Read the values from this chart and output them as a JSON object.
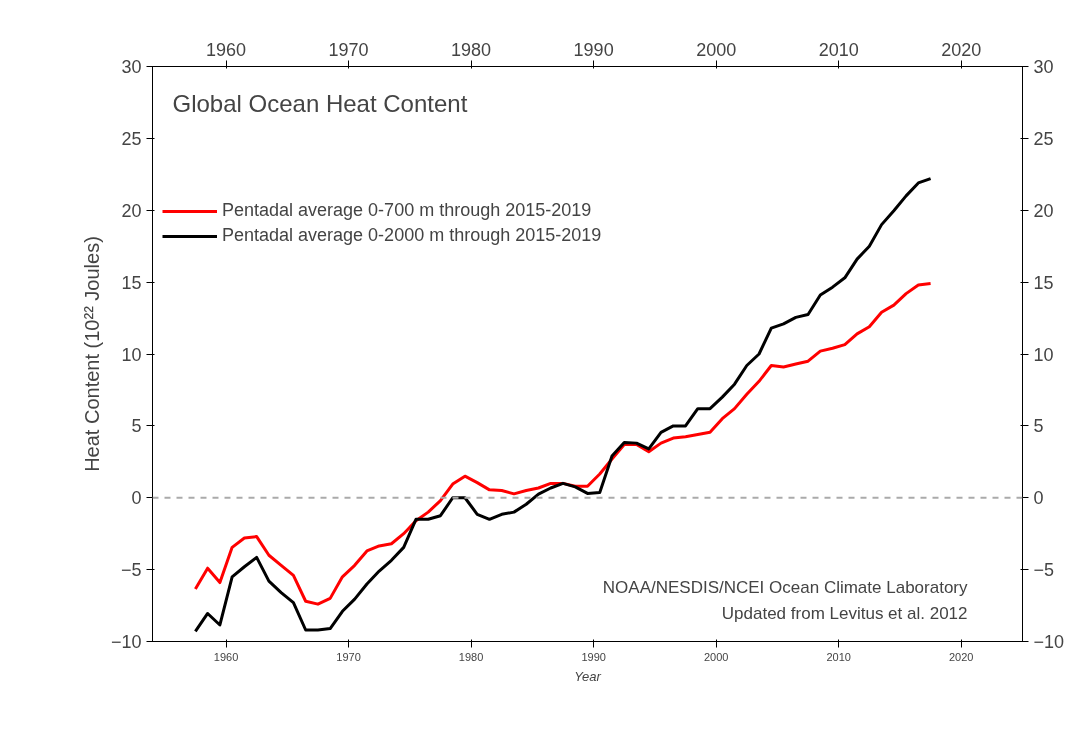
{
  "chart_data": {
    "type": "line",
    "title": "Global Ocean Heat Content",
    "xlabel": "Year",
    "ylabel": "Heat Content (10²² Joules)",
    "x": [
      1957.5,
      1958.5,
      1959.5,
      1960.5,
      1961.5,
      1962.5,
      1963.5,
      1964.5,
      1965.5,
      1966.5,
      1967.5,
      1968.5,
      1969.5,
      1970.5,
      1971.5,
      1972.5,
      1973.5,
      1974.5,
      1975.5,
      1976.5,
      1977.5,
      1978.5,
      1979.5,
      1980.5,
      1981.5,
      1982.5,
      1983.5,
      1984.5,
      1985.5,
      1986.5,
      1987.5,
      1988.5,
      1989.5,
      1990.5,
      1991.5,
      1992.5,
      1993.5,
      1994.5,
      1995.5,
      1996.5,
      1997.5,
      1998.5,
      1999.5,
      2000.5,
      2001.5,
      2002.5,
      2003.5,
      2004.5,
      2005.5,
      2006.5,
      2007.5,
      2008.5,
      2009.5,
      2010.5,
      2011.5,
      2012.5,
      2013.5,
      2014.5,
      2015.5,
      2016.5,
      2017.5
    ],
    "series": [
      {
        "name": "Pentadal average 0-700 m through 2015-2019",
        "color": "#ff0000",
        "values": [
          -6.35,
          -4.9,
          -5.9,
          -3.45,
          -2.8,
          -2.7,
          -4.0,
          -4.7,
          -5.4,
          -7.2,
          -7.4,
          -7.0,
          -5.5,
          -4.7,
          -3.7,
          -3.35,
          -3.2,
          -2.5,
          -1.6,
          -1.0,
          -0.2,
          0.95,
          1.5,
          1.05,
          0.55,
          0.5,
          0.27,
          0.5,
          0.68,
          1.0,
          1.0,
          0.8,
          0.8,
          1.65,
          2.7,
          3.7,
          3.7,
          3.2,
          3.8,
          4.15,
          4.25,
          4.4,
          4.55,
          5.5,
          6.2,
          7.2,
          8.1,
          9.2,
          9.1,
          9.3,
          9.5,
          10.2,
          10.4,
          10.65,
          11.4,
          11.9,
          12.9,
          13.4,
          14.2,
          14.8,
          14.9
        ]
      },
      {
        "name": "Pentadal average 0-2000 m through 2015-2019",
        "color": "#000000",
        "values": [
          -9.3,
          -8.05,
          -8.85,
          -5.5,
          -4.8,
          -4.15,
          -5.8,
          -6.6,
          -7.3,
          -9.2,
          -9.2,
          -9.1,
          -7.9,
          -7.05,
          -6.0,
          -5.1,
          -4.35,
          -3.45,
          -1.5,
          -1.5,
          -1.25,
          0.0,
          0.0,
          -1.15,
          -1.5,
          -1.15,
          -1.0,
          -0.45,
          0.25,
          0.68,
          1.0,
          0.76,
          0.3,
          0.37,
          2.9,
          3.85,
          3.8,
          3.4,
          4.55,
          5.0,
          5.0,
          6.2,
          6.2,
          7.0,
          7.9,
          9.2,
          10.0,
          11.8,
          12.1,
          12.55,
          12.75,
          14.1,
          14.65,
          15.3,
          16.6,
          17.5,
          19.0,
          19.97,
          21.0,
          21.9,
          22.2
        ]
      }
    ],
    "xlim": [
      1954,
      2025
    ],
    "xticks": [
      1960,
      1970,
      1980,
      1990,
      2000,
      2010,
      2020
    ],
    "x2lim": [
      1954,
      2025
    ],
    "x2ticks": [
      1960,
      1970,
      1980,
      1990,
      2000,
      2010,
      2020
    ],
    "ylim": [
      -10,
      30
    ],
    "yticks": [
      -10,
      -5,
      0,
      5,
      10,
      15,
      20,
      25,
      30
    ],
    "y2lim": [
      -10,
      30
    ],
    "y2ticks": [
      -10,
      -5,
      0,
      5,
      10,
      15,
      20,
      25,
      30
    ],
    "ref_lines": [
      {
        "axis": "y",
        "value": 0,
        "color": "#aaaaaa",
        "line_style": "dashed"
      }
    ],
    "annotations": [
      "NOAA/NESDIS/NCEI Ocean Climate Laboratory",
      "Updated from Levitus et al. 2012"
    ],
    "legend": "top left",
    "grid": false,
    "line_style": "solid",
    "marker": "none"
  }
}
